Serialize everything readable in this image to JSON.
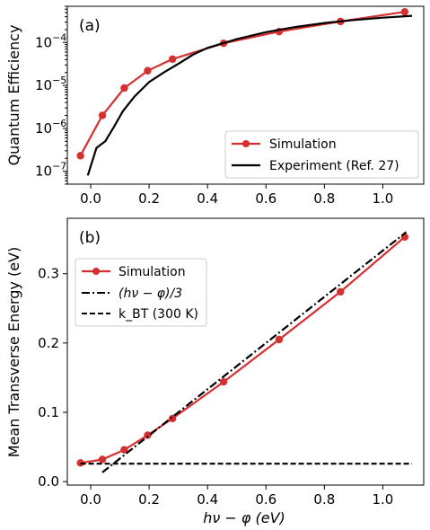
{
  "colors": {
    "simulation": "#d62f2f",
    "experiment": "#000000",
    "reference": "#000000"
  },
  "chart_data": [
    {
      "type": "line",
      "panel_label": "(a)",
      "xlabel": "",
      "ylabel": "Quantum Efficiency",
      "xlim": [
        -0.08,
        1.14
      ],
      "ylim": [
        5e-08,
        0.0007
      ],
      "yscale": "log",
      "xticks": [
        0.0,
        0.2,
        0.4,
        0.6,
        0.8,
        1.0
      ],
      "xtick_labels": [
        "0.0",
        "0.2",
        "0.4",
        "0.6",
        "0.8",
        "1.0"
      ],
      "yticks": [
        1e-07,
        1e-06,
        1e-05,
        0.0001
      ],
      "ytick_labels": [
        "10",
        "10",
        "10",
        "10"
      ],
      "ytick_exponents": [
        "−7",
        "−6",
        "−5",
        "−4"
      ],
      "grid": false,
      "legend_position": "lower-right",
      "series": [
        {
          "name": "Simulation",
          "style": "line-marker",
          "x": [
            -0.035,
            0.04,
            0.115,
            0.195,
            0.28,
            0.455,
            0.645,
            0.855,
            1.075
          ],
          "y": [
            2.3e-07,
            2e-06,
            8.7e-06,
            2.2e-05,
            4.1e-05,
            9.6e-05,
            0.00018,
            0.00031,
            0.00052
          ]
        },
        {
          "name": "Experiment (Ref. 27)",
          "style": "solid",
          "x": [
            -0.01,
            0.02,
            0.05,
            0.08,
            0.11,
            0.15,
            0.2,
            0.25,
            0.3,
            0.35,
            0.4,
            0.5,
            0.6,
            0.7,
            0.8,
            0.9,
            1.0,
            1.1
          ],
          "y": [
            8e-08,
            3.5e-07,
            5e-07,
            1.1e-06,
            2.5e-06,
            5.5e-06,
            1.2e-05,
            2e-05,
            3.2e-05,
            5.2e-05,
            7.5e-05,
            0.00012,
            0.000175,
            0.00023,
            0.000285,
            0.000335,
            0.00038,
            0.00042
          ]
        }
      ]
    },
    {
      "type": "line",
      "panel_label": "(b)",
      "xlabel": "hν − φ (eV)",
      "ylabel": "Mean Transverse Energy (eV)",
      "xlim": [
        -0.08,
        1.14
      ],
      "ylim": [
        -0.005,
        0.38
      ],
      "xticks": [
        0.0,
        0.2,
        0.4,
        0.6,
        0.8,
        1.0
      ],
      "xtick_labels": [
        "0.0",
        "0.2",
        "0.4",
        "0.6",
        "0.8",
        "1.0"
      ],
      "yticks": [
        0.0,
        0.1,
        0.2,
        0.3
      ],
      "ytick_labels": [
        "0.0",
        "0.1",
        "0.2",
        "0.3"
      ],
      "grid": false,
      "legend_position": "upper-left",
      "series": [
        {
          "name": "Simulation",
          "style": "line-marker",
          "x": [
            -0.035,
            0.04,
            0.115,
            0.195,
            0.28,
            0.455,
            0.645,
            0.855,
            1.075
          ],
          "y": [
            0.027,
            0.032,
            0.046,
            0.067,
            0.091,
            0.144,
            0.205,
            0.274,
            0.353
          ]
        },
        {
          "name": "(hν − φ)/3",
          "style": "dashdot",
          "x": [
            0.04,
            1.08
          ],
          "y": [
            0.0133,
            0.36
          ]
        },
        {
          "name": "k_BT (300 K)",
          "style": "dashed",
          "x": [
            -0.035,
            1.1
          ],
          "y": [
            0.0259,
            0.0259
          ]
        }
      ]
    }
  ]
}
